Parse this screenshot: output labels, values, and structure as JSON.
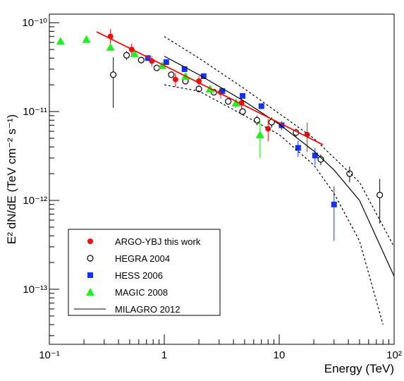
{
  "chart_data": {
    "type": "scatter",
    "x_label": "Energy (TeV)",
    "y_label": "E² dN/dE (TeV cm⁻² s⁻¹)",
    "xlim": [
      0.1,
      100
    ],
    "ylim": [
      2.4e-14,
      1.25e-10
    ],
    "log_x": true,
    "log_y": true,
    "xticks": [
      {
        "value": 0.1,
        "label": "10⁻¹"
      },
      1,
      10,
      {
        "value": 100,
        "label": "10²"
      }
    ],
    "yticks": [
      {
        "value": 1e-13,
        "label": "10⁻¹³"
      },
      {
        "value": 1e-12,
        "label": "10⁻¹²"
      },
      {
        "value": 1e-11,
        "label": "10⁻¹¹"
      },
      {
        "value": 1e-10,
        "label": "10⁻¹⁰"
      }
    ],
    "series": [
      {
        "name": "ARGO-YBJ this work",
        "color": "#ee1111",
        "marker": "circle",
        "x": [
          0.34,
          0.52,
          0.78,
          1.25,
          2.0,
          3.1,
          4.7,
          8.0,
          17.5
        ],
        "values": [
          7e-11,
          5e-11,
          3.7e-11,
          2.3e-11,
          2.2e-11,
          1.65e-11,
          1.25e-11,
          6.4e-12,
          5.5e-12
        ],
        "errors": [
          1.5e-11,
          8e-12,
          5e-12,
          4e-12,
          3e-12,
          2.5e-12,
          2e-12,
          1.8e-12,
          2e-12
        ]
      },
      {
        "name": "HEGRA 2004",
        "color": "#000000",
        "marker": "open-circle",
        "x": [
          0.36,
          0.47,
          0.63,
          0.86,
          1.15,
          1.53,
          2.0,
          2.7,
          3.6,
          4.8,
          6.4,
          8.6,
          14,
          23,
          41,
          75
        ],
        "values": [
          2.6e-11,
          4.3e-11,
          3.8e-11,
          3.1e-11,
          2.6e-11,
          2.2e-11,
          1.8e-11,
          1.65e-11,
          1.3e-11,
          1e-11,
          8e-12,
          7.6e-12,
          5.8e-12,
          2.9e-12,
          2e-12,
          1.15e-12
        ],
        "errors": [
          1.5e-11,
          5e-12,
          3e-12,
          2e-12,
          2e-12,
          1.5e-12,
          1e-12,
          1e-12,
          1e-12,
          8e-13,
          1e-12,
          1e-12,
          6e-13,
          4e-13,
          4e-13,
          6e-13
        ]
      },
      {
        "name": "HESS 2006",
        "color": "#1133ee",
        "marker": "square",
        "x": [
          0.72,
          1.04,
          1.5,
          2.2,
          3.2,
          4.8,
          7.0,
          10.5,
          14.6,
          20.5,
          30
        ],
        "values": [
          4e-11,
          3.6e-11,
          3e-11,
          2.5e-11,
          1.7e-11,
          1.5e-11,
          1.15e-11,
          7e-12,
          3.9e-12,
          3.2e-12,
          9e-13
        ],
        "errors": [
          2e-12,
          1.5e-12,
          1e-12,
          1e-12,
          8e-13,
          8e-13,
          8e-13,
          8e-13,
          8e-13,
          7e-13,
          5.5e-13
        ]
      },
      {
        "name": "MAGIC 2008",
        "color": "#22ee22",
        "marker": "triangle",
        "x": [
          0.125,
          0.21,
          0.34,
          0.55,
          0.96,
          1.53,
          2.5,
          4.2,
          6.8
        ],
        "values": [
          6.2e-11,
          6.5e-11,
          5.3e-11,
          4.5e-11,
          3.3e-11,
          2.5e-11,
          1.8e-11,
          1.25e-11,
          5.5e-12
        ],
        "errors": [
          3e-12,
          3e-12,
          3e-12,
          2.5e-12,
          2e-12,
          2e-12,
          1.5e-12,
          1.5e-12,
          2.5e-12
        ]
      },
      {
        "name": "MILAGRO 2012",
        "color": "#000000",
        "marker": "line",
        "x": [
          1,
          2,
          5,
          10,
          20,
          30,
          50,
          100
        ],
        "values": [
          4.2e-11,
          2.6e-11,
          1.3e-11,
          7.2e-12,
          3.6e-12,
          2.2e-12,
          1e-12,
          1.4e-13
        ]
      },
      {
        "color": "#000000",
        "marker": "dashed",
        "x": [
          1,
          2,
          5,
          10,
          20,
          50,
          100
        ],
        "values": [
          7e-11,
          4e-11,
          1.8e-11,
          9.5e-12,
          5e-12,
          1.6e-12,
          3e-13
        ]
      },
      {
        "color": "#000000",
        "marker": "dashed",
        "x": [
          1,
          2,
          5,
          10,
          20,
          30,
          50,
          80
        ],
        "values": [
          2e-11,
          1.7e-11,
          9e-12,
          5.5e-12,
          2.5e-12,
          1.2e-12,
          3.5e-13,
          4e-14
        ]
      },
      {
        "color": "#ee1111",
        "marker": "line",
        "x": [
          0.258,
          24
        ],
        "values": [
          7.9e-11,
          4.24e-12
        ]
      }
    ]
  }
}
